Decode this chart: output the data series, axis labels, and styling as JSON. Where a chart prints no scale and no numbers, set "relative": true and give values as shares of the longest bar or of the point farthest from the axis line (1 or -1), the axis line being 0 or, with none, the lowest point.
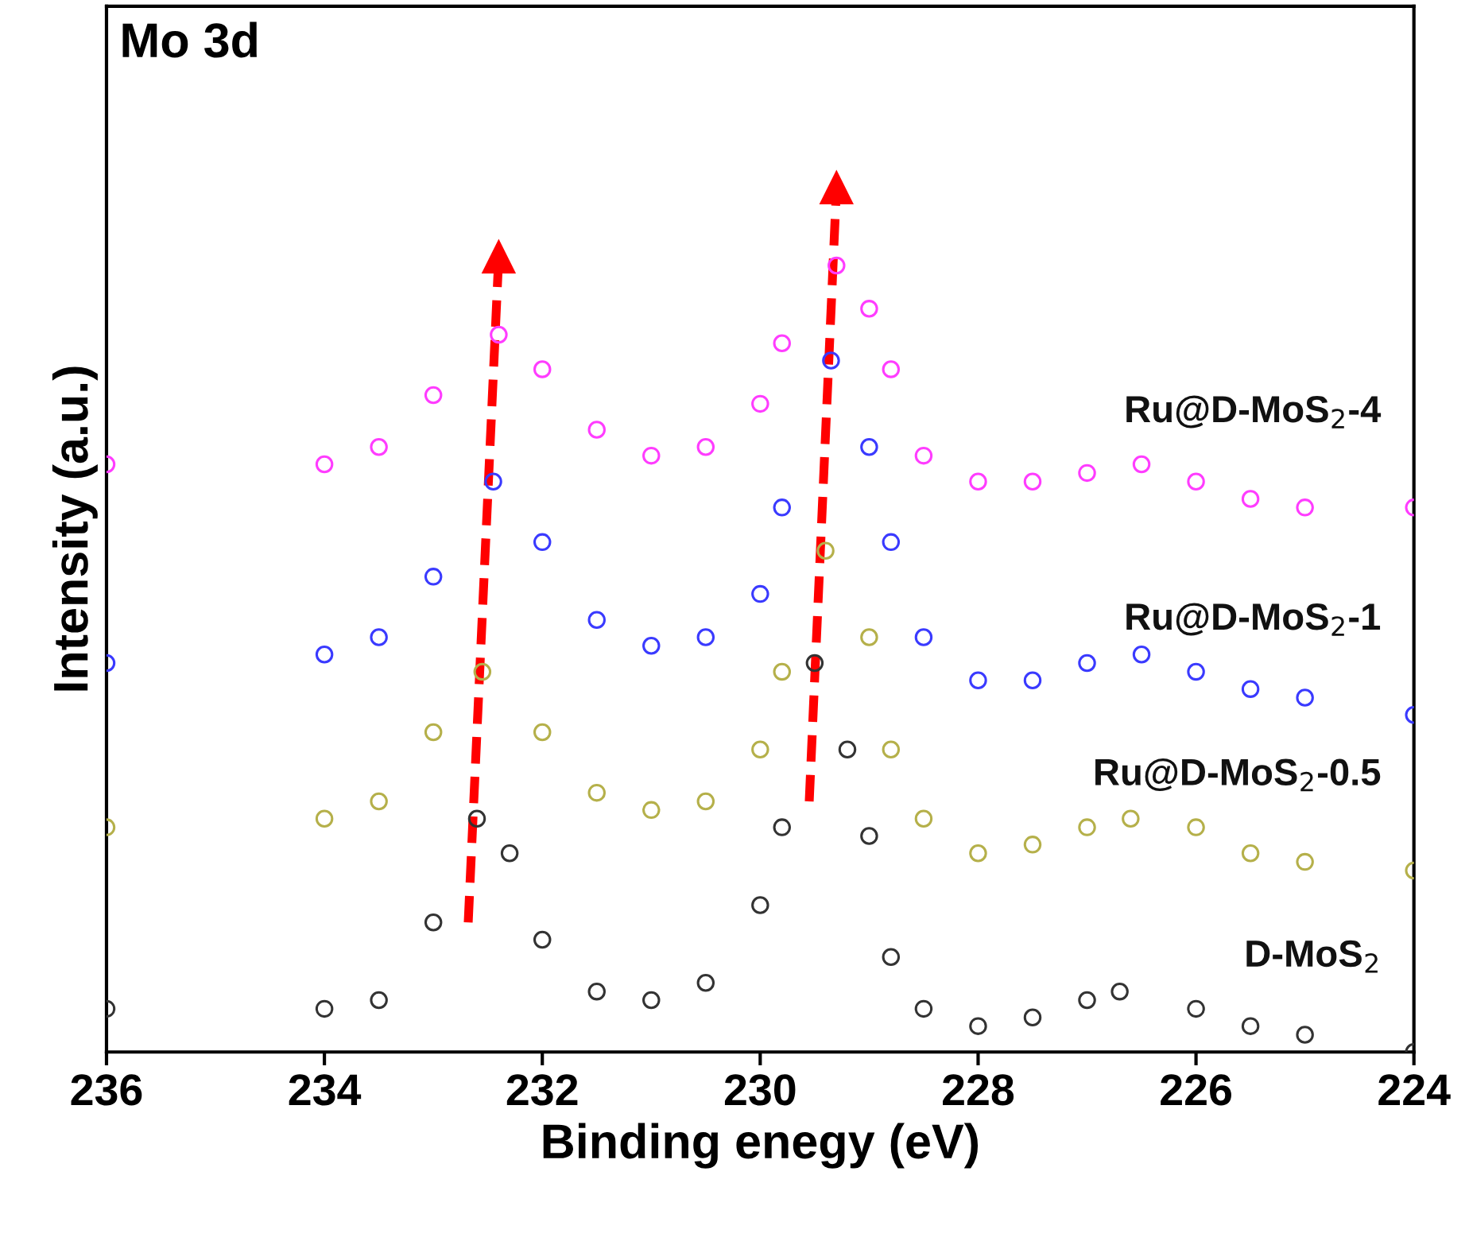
{
  "chart_data": {
    "type": "scatter",
    "relative": true,
    "title": "Mo 3d",
    "xlabel": "Binding enegy (eV)",
    "ylabel": "Intensity (a.u.)",
    "xlim": [
      236,
      224
    ],
    "xticks": [
      236,
      234,
      232,
      230,
      228,
      226,
      224
    ],
    "tick_labels": "x",
    "grid": false,
    "legend": false,
    "marker": "circle",
    "series": [
      {
        "name": "D-MoS$_{2}$",
        "color": "#333333",
        "x": [
          236,
          234,
          233.5,
          233,
          232.6,
          232.3,
          232,
          231.5,
          231,
          230.5,
          230,
          229.8,
          229.5,
          229.2,
          229,
          228.8,
          228.5,
          228,
          227.5,
          227,
          226.7,
          226,
          225.5,
          225,
          224
        ],
        "values": [
          0.05,
          0.05,
          0.06,
          0.15,
          0.27,
          0.23,
          0.13,
          0.07,
          0.06,
          0.08,
          0.17,
          0.26,
          0.45,
          0.35,
          0.25,
          0.11,
          0.05,
          0.03,
          0.04,
          0.06,
          0.07,
          0.05,
          0.03,
          0.02,
          0.0
        ]
      },
      {
        "name": "Ru@D-MoS$_{2}$-0.5",
        "color": "#b5b04a",
        "x": [
          236,
          234,
          233.5,
          233,
          232.55,
          232,
          231.5,
          231,
          230.5,
          230,
          229.8,
          229.4,
          229,
          228.8,
          228.5,
          228,
          227.5,
          227,
          226.6,
          226,
          225.5,
          225,
          224
        ],
        "values": [
          0.26,
          0.27,
          0.29,
          0.37,
          0.44,
          0.37,
          0.3,
          0.28,
          0.29,
          0.35,
          0.44,
          0.58,
          0.48,
          0.35,
          0.27,
          0.23,
          0.24,
          0.26,
          0.27,
          0.26,
          0.23,
          0.22,
          0.21
        ]
      },
      {
        "name": "Ru@D-MoS$_{2}$-1",
        "color": "#3a3aff",
        "x": [
          236,
          234,
          233.5,
          233,
          232.45,
          232,
          231.5,
          231,
          230.5,
          230,
          229.8,
          229.35,
          229,
          228.8,
          228.5,
          228,
          227.5,
          227,
          226.5,
          226,
          225.5,
          225,
          224
        ],
        "values": [
          0.45,
          0.46,
          0.48,
          0.55,
          0.66,
          0.59,
          0.5,
          0.47,
          0.48,
          0.53,
          0.63,
          0.8,
          0.7,
          0.59,
          0.48,
          0.43,
          0.43,
          0.45,
          0.46,
          0.44,
          0.42,
          0.41,
          0.39
        ]
      },
      {
        "name": "Ru@D-MoS$_{2}$-4",
        "color": "#ff3cff",
        "x": [
          236,
          234,
          233.5,
          233,
          232.4,
          232,
          231.5,
          231,
          230.5,
          230,
          229.8,
          229.3,
          229,
          228.8,
          228.5,
          228,
          227.5,
          227,
          226.5,
          226,
          225.5,
          225,
          224
        ],
        "values": [
          0.68,
          0.68,
          0.7,
          0.76,
          0.83,
          0.79,
          0.72,
          0.69,
          0.7,
          0.75,
          0.82,
          0.91,
          0.86,
          0.79,
          0.69,
          0.66,
          0.66,
          0.67,
          0.68,
          0.66,
          0.64,
          0.63,
          0.63
        ]
      },
      {
        "type": "line",
        "color": "#ff0000",
        "line_style": "dashed",
        "marker": "triangle",
        "x": [
          232.68,
          232.4
        ],
        "values": [
          0.15,
          0.92
        ]
      },
      {
        "type": "line",
        "color": "#ff0000",
        "line_style": "dashed",
        "marker": "triangle",
        "x": [
          229.55,
          229.3
        ],
        "values": [
          0.29,
          1.0
        ]
      }
    ]
  }
}
